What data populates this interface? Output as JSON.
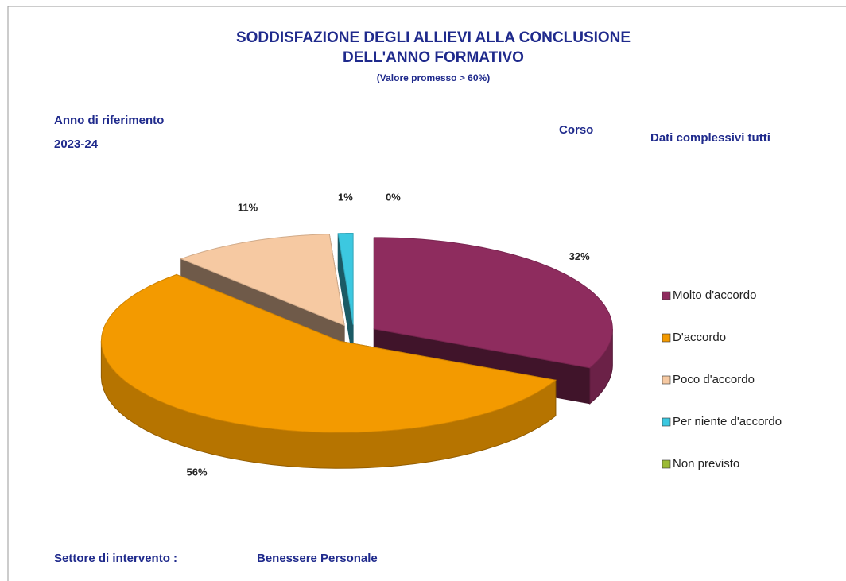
{
  "chart_data": {
    "type": "pie3d",
    "title": [
      "SODDISFAZIONE DEGLI ALLIEVI ALLA CONCLUSIONE",
      "DELL'ANNO FORMATIVO"
    ],
    "subtitle": "(Valore promesso > 60%)",
    "reference_year_label": "Anno di riferimento",
    "reference_year": "2023-24",
    "course_label": "Corso",
    "course": "Dati complessivi tutti",
    "sector_label": "Settore di intervento :",
    "sector": "Benessere Personale",
    "categories": [
      "Molto d'accordo",
      "D'accordo",
      "Poco d'accordo",
      "Per niente d'accordo",
      "Non previsto"
    ],
    "values": [
      32,
      56,
      11,
      1,
      0
    ],
    "value_labels": [
      "32%",
      "56%",
      "11%",
      "1%",
      "0%"
    ],
    "colors": [
      "#8e2c5e",
      "#f39a00",
      "#f6c9a2",
      "#3cc8e0",
      "#9bbb35"
    ],
    "legend": "right"
  }
}
